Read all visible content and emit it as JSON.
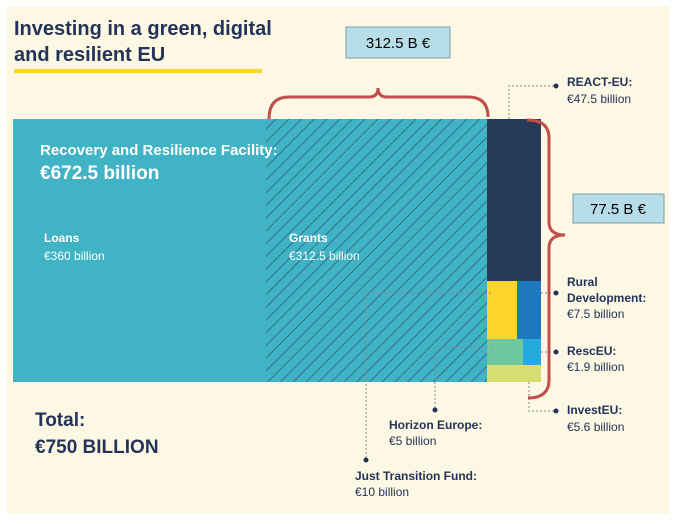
{
  "title_line1": "Investing in a green, digital",
  "title_line2": "and resilient EU",
  "callout_grants": "312.5 B €",
  "callout_other": "77.5 B €",
  "rrf_title": "Recovery and Resilience Facility:",
  "rrf_value": "€672.5 billion",
  "total_label": "Total:",
  "total_value": "€750 BILLION",
  "colors": {
    "rrf": "#40b3c4",
    "grant_stripe": "#24335a",
    "react_eu": "#273a58",
    "rural": "#fcd52c",
    "rural_blue": "#1d78c0",
    "rescue": "#6fc7a0",
    "rescue_blue": "#26a9dd",
    "invest": "#d7dc73",
    "brace": "#c0504d",
    "callout_bg": "#b6dde8",
    "title_underline": "#fcd52c"
  },
  "chart_data": {
    "type": "treemap",
    "title": "Investing in a green, digital and resilient EU",
    "unit": "billion €",
    "total": 750,
    "blocks": [
      {
        "name": "Recovery and Resilience Facility",
        "value": 672.5,
        "value_label": "€672.5 billion",
        "children": [
          {
            "name": "Loans",
            "value": 360,
            "value_label": "€360 billion"
          },
          {
            "name": "Grants",
            "value": 312.5,
            "value_label": "€312.5 billion"
          }
        ]
      },
      {
        "name": "REACT-EU:",
        "value": 47.5,
        "value_label": "€47.5 billion"
      },
      {
        "name": "Rural Development:",
        "name_lines": [
          "Rural",
          "Development:"
        ],
        "value": 7.5,
        "value_label": "€7.5 billion"
      },
      {
        "name": "Just Transition Fund:",
        "value": 10,
        "value_label": "€10 billion"
      },
      {
        "name": "Horizon Europe:",
        "value": 5,
        "value_label": "€5 billion"
      },
      {
        "name": "RescEU:",
        "value": 1.9,
        "value_label": "€1.9 billion"
      },
      {
        "name": "InvestEU:",
        "value": 5.6,
        "value_label": "€5.6 billion"
      }
    ],
    "annotations": [
      {
        "text": "312.5 B €",
        "refers_to": "Grants"
      },
      {
        "text": "77.5 B €",
        "refers_to": "other programmes"
      }
    ]
  }
}
